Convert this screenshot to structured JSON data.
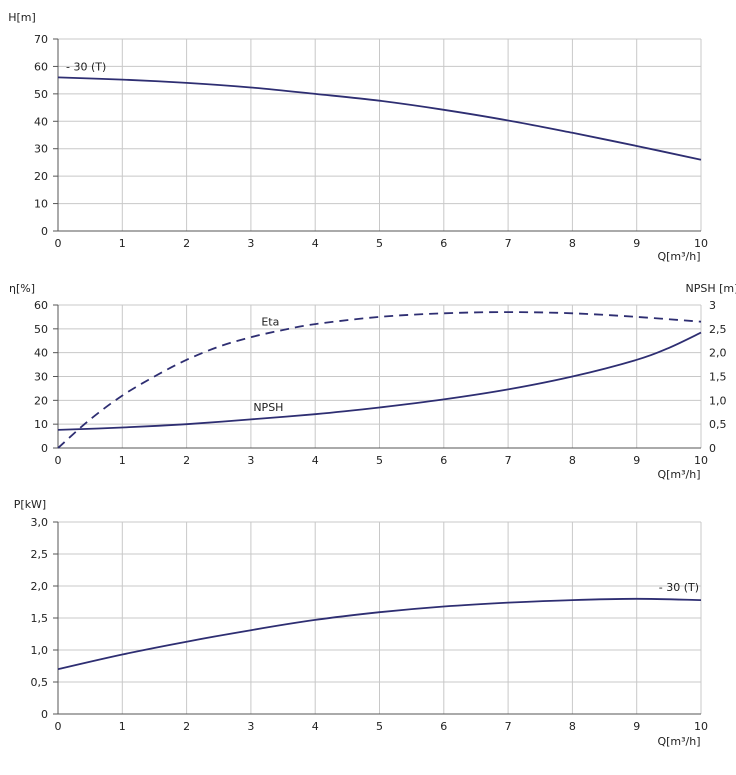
{
  "colors": {
    "curve": "#2e2e72",
    "grid": "#c8c8c8",
    "axis": "#555555",
    "text": "#222222"
  },
  "chart_data": [
    {
      "type": "line",
      "y_label": "H[m]",
      "x_label": "Q[m³/h]",
      "x_ticks": [
        "0",
        "1",
        "2",
        "3",
        "4",
        "5",
        "6",
        "7",
        "8",
        "9",
        "10"
      ],
      "y_ticks": [
        "0",
        "10",
        "20",
        "30",
        "40",
        "50",
        "60",
        "70"
      ],
      "xlim": [
        0,
        10
      ],
      "ylim": [
        0,
        70
      ],
      "grid": true,
      "series": [
        {
          "name": "- 30 (T)",
          "style": "solid",
          "x": [
            0,
            1,
            2,
            3,
            4,
            5,
            6,
            7,
            8,
            9,
            10
          ],
          "y": [
            56,
            55.2,
            54,
            52.3,
            50,
            47.5,
            44.2,
            40.3,
            35.8,
            31,
            26
          ]
        }
      ]
    },
    {
      "type": "line",
      "y_label": "η[%]",
      "y2_label": "NPSH [m]",
      "x_label": "Q[m³/h]",
      "x_ticks": [
        "0",
        "1",
        "2",
        "3",
        "4",
        "5",
        "6",
        "7",
        "8",
        "9",
        "10"
      ],
      "y_ticks": [
        "0",
        "10",
        "20",
        "30",
        "40",
        "50",
        "60"
      ],
      "y2_ticks": [
        "0",
        "0,5",
        "1,0",
        "1,5",
        "2,0",
        "2,5",
        "3"
      ],
      "xlim": [
        0,
        10
      ],
      "ylim": [
        0,
        60
      ],
      "y2lim": [
        0,
        3
      ],
      "grid": true,
      "series": [
        {
          "name": "Eta",
          "axis": "left",
          "style": "dashed",
          "x": [
            0,
            0.5,
            1,
            1.5,
            2,
            2.5,
            3,
            3.5,
            4,
            5,
            6,
            7,
            8,
            9,
            10
          ],
          "y": [
            0,
            12,
            22,
            30,
            37,
            42.5,
            46.5,
            49.5,
            52,
            55,
            56.5,
            57,
            56.5,
            55,
            53
          ]
        },
        {
          "name": "NPSH",
          "axis": "right",
          "style": "solid",
          "x": [
            0,
            1,
            2,
            3,
            4,
            5,
            6,
            7,
            8,
            9,
            9.5,
            10
          ],
          "y": [
            0.38,
            0.43,
            0.5,
            0.6,
            0.71,
            0.85,
            1.02,
            1.23,
            1.5,
            1.85,
            2.1,
            2.42
          ]
        }
      ]
    },
    {
      "type": "line",
      "y_label": "P[kW]",
      "x_label": "Q[m³/h]",
      "x_ticks": [
        "0",
        "1",
        "2",
        "3",
        "4",
        "5",
        "6",
        "7",
        "8",
        "9",
        "10"
      ],
      "y_ticks": [
        "0",
        "0,5",
        "1,0",
        "1,5",
        "2,0",
        "2,5",
        "3,0"
      ],
      "xlim": [
        0,
        10
      ],
      "ylim": [
        0,
        3
      ],
      "grid": true,
      "series": [
        {
          "name": "- 30 (T)",
          "style": "solid",
          "x": [
            0,
            1,
            2,
            3,
            4,
            5,
            6,
            7,
            8,
            9,
            10
          ],
          "y": [
            0.7,
            0.93,
            1.13,
            1.31,
            1.47,
            1.59,
            1.68,
            1.74,
            1.78,
            1.8,
            1.78
          ]
        }
      ]
    }
  ]
}
